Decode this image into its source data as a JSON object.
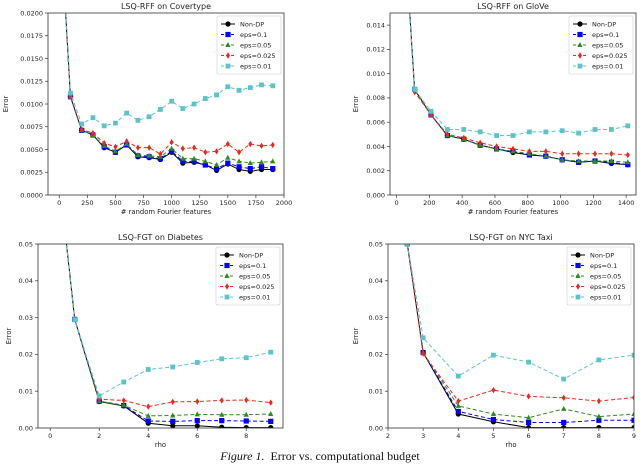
{
  "caption": {
    "label": "Figure 1.",
    "text": "Error vs. computational budget"
  },
  "legend_entries": [
    "Non-DP",
    "eps=0.1",
    "eps=0.05",
    "eps=0.025",
    "eps=0.01"
  ],
  "series_colors": {
    "Non-DP": "#000000",
    "eps=0.1": "#0000ff",
    "eps=0.05": "#2e8b22",
    "eps=0.025": "#e8291c",
    "eps=0.01": "#5cc4c8"
  },
  "chart_data": [
    {
      "type": "line",
      "title": "LSQ-RFF on Covertype",
      "xlabel": "# random Fourier features",
      "ylabel": "Error",
      "xlim": [
        -100,
        2000
      ],
      "ylim": [
        0,
        0.02
      ],
      "xticks": [
        0,
        250,
        500,
        750,
        1000,
        1250,
        1500,
        1750,
        2000
      ],
      "yticks": [
        0.0,
        0.0025,
        0.005,
        0.0075,
        0.01,
        0.0125,
        0.015,
        0.0175,
        0.02
      ],
      "ytick_labels": [
        "0.0000",
        "0.0025",
        "0.0050",
        "0.0075",
        "0.0100",
        "0.0125",
        "0.0150",
        "0.0175",
        "0.0200"
      ],
      "legend": "top-right",
      "x": [
        10,
        100,
        200,
        300,
        400,
        500,
        600,
        700,
        800,
        900,
        1000,
        1100,
        1200,
        1300,
        1400,
        1500,
        1600,
        1700,
        1800,
        1900
      ],
      "series": [
        {
          "name": "Non-DP",
          "values": [
            0.03,
            0.0108,
            0.0071,
            0.0066,
            0.0052,
            0.0047,
            0.0055,
            0.0042,
            0.0041,
            0.0039,
            0.0047,
            0.0035,
            0.0036,
            0.0033,
            0.0027,
            0.0034,
            0.0028,
            0.0026,
            0.0028,
            0.0028
          ]
        },
        {
          "name": "eps=0.1",
          "values": [
            0.03,
            0.0108,
            0.0071,
            0.0066,
            0.0053,
            0.0047,
            0.0055,
            0.0043,
            0.0042,
            0.004,
            0.0048,
            0.0037,
            0.0037,
            0.0033,
            0.0029,
            0.0035,
            0.0031,
            0.0029,
            0.0031,
            0.0029
          ]
        },
        {
          "name": "eps=0.05",
          "values": [
            0.03,
            0.0108,
            0.0071,
            0.0066,
            0.0054,
            0.0048,
            0.0056,
            0.0044,
            0.0043,
            0.0042,
            0.0051,
            0.004,
            0.004,
            0.0037,
            0.0033,
            0.0041,
            0.0037,
            0.0035,
            0.0036,
            0.0037
          ]
        },
        {
          "name": "eps=0.025",
          "values": [
            0.03,
            0.0108,
            0.0072,
            0.0068,
            0.0057,
            0.0053,
            0.0059,
            0.0052,
            0.0052,
            0.0045,
            0.0058,
            0.0051,
            0.0052,
            0.0047,
            0.0048,
            0.0056,
            0.0047,
            0.0056,
            0.0054,
            0.0055
          ]
        },
        {
          "name": "eps=0.01",
          "values": [
            0.03,
            0.0112,
            0.0078,
            0.0085,
            0.0076,
            0.0079,
            0.009,
            0.0082,
            0.0086,
            0.0094,
            0.0103,
            0.0095,
            0.01,
            0.0106,
            0.011,
            0.0119,
            0.0115,
            0.0118,
            0.0121,
            0.012
          ]
        }
      ]
    },
    {
      "type": "line",
      "title": "LSQ-RFF on GloVe",
      "xlabel": "# random Fourier features",
      "ylabel": "Error",
      "xlim": [
        -40,
        1460
      ],
      "ylim": [
        0,
        0.015
      ],
      "xticks": [
        0,
        200,
        400,
        600,
        800,
        1000,
        1200,
        1400
      ],
      "yticks": [
        0.0,
        0.002,
        0.004,
        0.006,
        0.008,
        0.01,
        0.012,
        0.014
      ],
      "ytick_labels": [
        "0.000",
        "0.002",
        "0.004",
        "0.006",
        "0.008",
        "0.010",
        "0.012",
        "0.014"
      ],
      "legend": "top-right",
      "x": [
        10,
        110,
        210,
        310,
        410,
        510,
        610,
        710,
        810,
        910,
        1010,
        1110,
        1210,
        1310,
        1410
      ],
      "series": [
        {
          "name": "Non-DP",
          "values": [
            0.03,
            0.0087,
            0.0066,
            0.0049,
            0.0046,
            0.0041,
            0.0038,
            0.0035,
            0.0033,
            0.0032,
            0.0029,
            0.0027,
            0.0028,
            0.0026,
            0.0025
          ]
        },
        {
          "name": "eps=0.1",
          "values": [
            0.03,
            0.0087,
            0.0066,
            0.0049,
            0.0046,
            0.0041,
            0.0038,
            0.0036,
            0.0033,
            0.0032,
            0.0029,
            0.0027,
            0.0028,
            0.0027,
            0.0025
          ]
        },
        {
          "name": "eps=0.05",
          "values": [
            0.03,
            0.0087,
            0.0066,
            0.0049,
            0.0046,
            0.0041,
            0.0038,
            0.0036,
            0.0034,
            0.0032,
            0.0029,
            0.0028,
            0.0028,
            0.0028,
            0.0027
          ]
        },
        {
          "name": "eps=0.025",
          "values": [
            0.03,
            0.0085,
            0.0066,
            0.005,
            0.0047,
            0.0043,
            0.004,
            0.0038,
            0.0036,
            0.0036,
            0.0034,
            0.0034,
            0.0034,
            0.0034,
            0.0033
          ]
        },
        {
          "name": "eps=0.01",
          "values": [
            0.03,
            0.0087,
            0.0069,
            0.0054,
            0.0054,
            0.0052,
            0.0049,
            0.0049,
            0.0052,
            0.0052,
            0.0053,
            0.0051,
            0.0054,
            0.0054,
            0.0057
          ]
        }
      ]
    },
    {
      "type": "line",
      "title": "LSQ-FGT on Diabetes",
      "xlabel": "rho",
      "ylabel": "Error",
      "xlim": [
        -0.5,
        9.5
      ],
      "ylim": [
        0,
        0.05
      ],
      "xticks": [
        0,
        2,
        4,
        6,
        8
      ],
      "yticks": [
        0.0,
        0.01,
        0.02,
        0.03,
        0.04,
        0.05
      ],
      "ytick_labels": [
        "0.00",
        "0.01",
        "0.02",
        "0.03",
        "0.04",
        "0.05"
      ],
      "legend": "top-right",
      "x": [
        0,
        1,
        2,
        3,
        4,
        5,
        6,
        7,
        8,
        9
      ],
      "series": [
        {
          "name": "Non-DP",
          "values": [
            0.09,
            0.0295,
            0.0072,
            0.006,
            0.0013,
            0.0006,
            0.0006,
            0.0002,
            0.0001,
            0.0001
          ]
        },
        {
          "name": "eps=0.1",
          "values": [
            0.09,
            0.0295,
            0.0073,
            0.0061,
            0.0019,
            0.0018,
            0.002,
            0.002,
            0.0019,
            0.0018
          ]
        },
        {
          "name": "eps=0.05",
          "values": [
            0.09,
            0.0295,
            0.0073,
            0.0062,
            0.0033,
            0.0034,
            0.0037,
            0.0036,
            0.0036,
            0.0038
          ]
        },
        {
          "name": "eps=0.025",
          "values": [
            0.09,
            0.0297,
            0.0078,
            0.0075,
            0.0058,
            0.0071,
            0.0072,
            0.0075,
            0.0076,
            0.0069
          ]
        },
        {
          "name": "eps=0.01",
          "values": [
            0.09,
            0.0294,
            0.0087,
            0.0125,
            0.0159,
            0.0166,
            0.0178,
            0.0188,
            0.0191,
            0.0206
          ]
        }
      ]
    },
    {
      "type": "line",
      "title": "LSQ-FGT on NYC Taxi",
      "xlabel": "rho",
      "ylabel": "Error",
      "xlim": [
        2,
        9
      ],
      "ylim": [
        0,
        0.05
      ],
      "xticks": [
        2,
        3,
        4,
        5,
        6,
        7,
        8,
        9
      ],
      "yticks": [
        0.0,
        0.01,
        0.02,
        0.03,
        0.04,
        0.05
      ],
      "ytick_labels": [
        "0.00",
        "0.01",
        "0.02",
        "0.03",
        "0.04",
        "0.05"
      ],
      "legend": "top-right",
      "x": [
        2.55,
        3,
        4,
        5,
        6,
        7,
        8,
        9
      ],
      "series": [
        {
          "name": "Non-DP",
          "values": [
            0.05,
            0.0205,
            0.0038,
            0.0017,
            0.0001,
            0.0001,
            0.0001,
            0.0001
          ]
        },
        {
          "name": "eps=0.1",
          "values": [
            0.05,
            0.0205,
            0.0045,
            0.0023,
            0.0015,
            0.0015,
            0.0021,
            0.0021
          ]
        },
        {
          "name": "eps=0.05",
          "values": [
            0.05,
            0.0205,
            0.006,
            0.0038,
            0.0028,
            0.0052,
            0.0031,
            0.0038
          ]
        },
        {
          "name": "eps=0.025",
          "values": [
            0.05,
            0.0202,
            0.0073,
            0.0103,
            0.0086,
            0.0082,
            0.0073,
            0.0083
          ]
        },
        {
          "name": "eps=0.01",
          "values": [
            0.05,
            0.0245,
            0.0141,
            0.0198,
            0.0179,
            0.0133,
            0.0185,
            0.0198
          ]
        }
      ]
    }
  ]
}
